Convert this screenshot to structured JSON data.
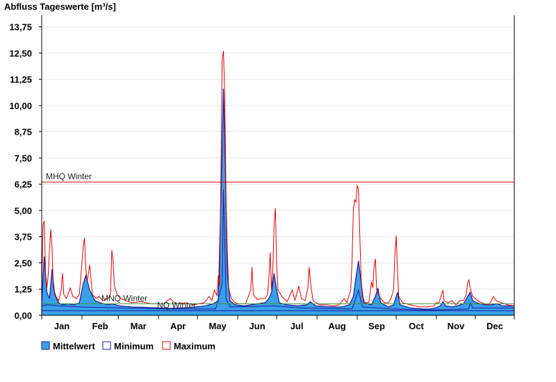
{
  "chart_data": {
    "type": "area",
    "title": "Abfluss Tageswerte [m³/s]",
    "xlabel": "",
    "ylabel": "",
    "ylim": [
      0,
      14.3
    ],
    "y_ticks": [
      "0,00",
      "1,25",
      "2,50",
      "3,75",
      "5,00",
      "6,25",
      "7,50",
      "8,75",
      "10,00",
      "11,25",
      "12,50",
      "13,75"
    ],
    "y_tick_values": [
      0,
      1.25,
      2.5,
      3.75,
      5,
      6.25,
      7.5,
      8.75,
      10,
      11.25,
      12.5,
      13.75
    ],
    "months": [
      "Jan",
      "Feb",
      "Mar",
      "Apr",
      "May",
      "Jun",
      "Jul",
      "Aug",
      "Sep",
      "Oct",
      "Nov",
      "Dec"
    ],
    "grid": true,
    "legend_position": "bottom-left",
    "colors": {
      "mittelwert_fill": "#3aa0e8",
      "mittelwert_line": "#1a1aa0",
      "minimum": "#1a1aa0",
      "maximum": "#dd0000",
      "mhq": "#cc0000",
      "mnq": "#3a9a3a",
      "nq": "#1a1aa0",
      "grid": "#e6e6e6"
    },
    "reference_lines": [
      {
        "label": "MHQ Winter",
        "value": 6.35
      },
      {
        "label": "MNQ Winter",
        "value": 0.55
      },
      {
        "label": "NQ Winter",
        "value": 0.22
      }
    ],
    "series": [
      {
        "name": "Mittelwert",
        "style": "area",
        "points": [
          [
            1,
            0.6
          ],
          [
            3,
            2.8
          ],
          [
            5,
            1.1
          ],
          [
            7,
            0.8
          ],
          [
            9,
            2.2
          ],
          [
            11,
            1.0
          ],
          [
            14,
            0.6
          ],
          [
            17,
            0.5
          ],
          [
            21,
            0.55
          ],
          [
            26,
            0.5
          ],
          [
            30,
            0.6
          ],
          [
            33,
            1.5
          ],
          [
            35,
            1.9
          ],
          [
            38,
            1.2
          ],
          [
            42,
            0.7
          ],
          [
            46,
            0.6
          ],
          [
            52,
            0.5
          ],
          [
            55,
            0.55
          ],
          [
            58,
            0.5
          ],
          [
            61,
            0.45
          ],
          [
            70,
            0.4
          ],
          [
            80,
            0.38
          ],
          [
            90,
            0.35
          ],
          [
            100,
            0.33
          ],
          [
            110,
            0.35
          ],
          [
            120,
            0.4
          ],
          [
            127,
            0.45
          ],
          [
            133,
            0.55
          ],
          [
            137,
            0.7
          ],
          [
            140,
            8.0
          ],
          [
            141,
            10.8
          ],
          [
            142,
            8.5
          ],
          [
            144,
            2.0
          ],
          [
            146,
            0.7
          ],
          [
            150,
            0.5
          ],
          [
            157,
            0.45
          ],
          [
            162,
            0.5
          ],
          [
            167,
            0.55
          ],
          [
            173,
            0.6
          ],
          [
            176,
            0.8
          ],
          [
            178,
            1.1
          ],
          [
            180,
            2.0
          ],
          [
            182,
            1.2
          ],
          [
            184,
            0.6
          ],
          [
            190,
            0.5
          ],
          [
            198,
            0.45
          ],
          [
            205,
            0.5
          ],
          [
            208,
            0.65
          ],
          [
            212,
            0.45
          ],
          [
            222,
            0.4
          ],
          [
            232,
            0.4
          ],
          [
            238,
            0.5
          ],
          [
            241,
            0.9
          ],
          [
            243,
            1.8
          ],
          [
            245,
            2.6
          ],
          [
            247,
            1.6
          ],
          [
            249,
            0.6
          ],
          [
            255,
            0.5
          ],
          [
            258,
            0.9
          ],
          [
            260,
            1.3
          ],
          [
            262,
            0.6
          ],
          [
            268,
            0.4
          ],
          [
            272,
            0.5
          ],
          [
            275,
            1.1
          ],
          [
            277,
            0.5
          ],
          [
            285,
            0.35
          ],
          [
            295,
            0.3
          ],
          [
            300,
            0.3
          ],
          [
            304,
            0.35
          ],
          [
            308,
            0.45
          ],
          [
            310,
            0.65
          ],
          [
            312,
            0.45
          ],
          [
            317,
            0.4
          ],
          [
            321,
            0.45
          ],
          [
            326,
            0.55
          ],
          [
            329,
            0.9
          ],
          [
            331,
            1.1
          ],
          [
            333,
            0.7
          ],
          [
            336,
            0.6
          ],
          [
            342,
            0.5
          ],
          [
            347,
            0.5
          ],
          [
            352,
            0.55
          ],
          [
            356,
            0.45
          ],
          [
            365,
            0.45
          ]
        ]
      },
      {
        "name": "Minimum",
        "style": "line",
        "points": [
          [
            1,
            0.45
          ],
          [
            5,
            0.5
          ],
          [
            14,
            0.45
          ],
          [
            30,
            0.4
          ],
          [
            60,
            0.35
          ],
          [
            100,
            0.3
          ],
          [
            135,
            0.3
          ],
          [
            140,
            1.5
          ],
          [
            141,
            6.0
          ],
          [
            143,
            0.8
          ],
          [
            146,
            0.4
          ],
          [
            180,
            0.45
          ],
          [
            200,
            0.35
          ],
          [
            240,
            0.3
          ],
          [
            245,
            1.2
          ],
          [
            248,
            0.4
          ],
          [
            270,
            0.3
          ],
          [
            300,
            0.25
          ],
          [
            330,
            0.3
          ],
          [
            331,
            0.6
          ],
          [
            333,
            0.35
          ],
          [
            365,
            0.35
          ]
        ]
      },
      {
        "name": "Maximum",
        "style": "line",
        "points": [
          [
            1,
            1.0
          ],
          [
            2,
            4.3
          ],
          [
            3,
            4.5
          ],
          [
            4,
            2.0
          ],
          [
            5,
            1.3
          ],
          [
            6,
            1.9
          ],
          [
            7,
            3.1
          ],
          [
            8,
            4.1
          ],
          [
            9,
            3.2
          ],
          [
            10,
            1.3
          ],
          [
            12,
            0.9
          ],
          [
            14,
            0.7
          ],
          [
            16,
            1.2
          ],
          [
            17,
            2.0
          ],
          [
            18,
            1.0
          ],
          [
            20,
            0.8
          ],
          [
            23,
            1.3
          ],
          [
            25,
            0.9
          ],
          [
            28,
            0.8
          ],
          [
            30,
            1.0
          ],
          [
            32,
            2.5
          ],
          [
            33,
            3.3
          ],
          [
            34,
            3.7
          ],
          [
            35,
            2.2
          ],
          [
            36,
            1.6
          ],
          [
            38,
            2.4
          ],
          [
            40,
            1.0
          ],
          [
            43,
            0.8
          ],
          [
            45,
            0.9
          ],
          [
            48,
            0.7
          ],
          [
            52,
            0.8
          ],
          [
            54,
            1.0
          ],
          [
            55,
            3.1
          ],
          [
            56,
            2.6
          ],
          [
            57,
            1.4
          ],
          [
            59,
            1.0
          ],
          [
            62,
            0.8
          ],
          [
            70,
            0.6
          ],
          [
            78,
            0.65
          ],
          [
            85,
            0.55
          ],
          [
            95,
            0.55
          ],
          [
            100,
            0.8
          ],
          [
            104,
            0.55
          ],
          [
            112,
            0.6
          ],
          [
            118,
            0.5
          ],
          [
            122,
            0.55
          ],
          [
            126,
            0.6
          ],
          [
            128,
            0.75
          ],
          [
            130,
            0.9
          ],
          [
            132,
            0.7
          ],
          [
            134,
            1.2
          ],
          [
            136,
            0.95
          ],
          [
            137,
            1.9
          ],
          [
            138,
            1.4
          ],
          [
            139,
            6.5
          ],
          [
            140,
            12.2
          ],
          [
            141,
            12.6
          ],
          [
            142,
            10.5
          ],
          [
            143,
            5.5
          ],
          [
            144,
            3.0
          ],
          [
            145,
            1.3
          ],
          [
            147,
            0.8
          ],
          [
            150,
            0.6
          ],
          [
            153,
            0.55
          ],
          [
            158,
            0.55
          ],
          [
            162,
            1.2
          ],
          [
            163,
            2.3
          ],
          [
            164,
            1.0
          ],
          [
            167,
            0.75
          ],
          [
            170,
            0.8
          ],
          [
            173,
            0.8
          ],
          [
            175,
            1.0
          ],
          [
            176,
            1.8
          ],
          [
            177,
            3.0
          ],
          [
            178,
            1.2
          ],
          [
            179,
            2.1
          ],
          [
            180,
            4.4
          ],
          [
            181,
            5.1
          ],
          [
            182,
            2.3
          ],
          [
            183,
            1.2
          ],
          [
            186,
            0.9
          ],
          [
            190,
            0.65
          ],
          [
            194,
            1.2
          ],
          [
            196,
            0.7
          ],
          [
            199,
            1.4
          ],
          [
            201,
            0.8
          ],
          [
            204,
            0.7
          ],
          [
            206,
            1.3
          ],
          [
            207,
            2.3
          ],
          [
            208,
            1.6
          ],
          [
            210,
            0.7
          ],
          [
            215,
            0.5
          ],
          [
            220,
            0.5
          ],
          [
            225,
            0.45
          ],
          [
            230,
            0.5
          ],
          [
            234,
            0.8
          ],
          [
            236,
            0.6
          ],
          [
            239,
            1.2
          ],
          [
            240,
            2.5
          ],
          [
            241,
            5.0
          ],
          [
            242,
            5.5
          ],
          [
            243,
            5.4
          ],
          [
            244,
            6.2
          ],
          [
            245,
            6.0
          ],
          [
            246,
            3.8
          ],
          [
            247,
            1.8
          ],
          [
            248,
            0.9
          ],
          [
            250,
            0.6
          ],
          [
            253,
            0.6
          ],
          [
            255,
            1.6
          ],
          [
            256,
            1.3
          ],
          [
            257,
            2.3
          ],
          [
            258,
            2.7
          ],
          [
            259,
            1.2
          ],
          [
            262,
            0.8
          ],
          [
            265,
            0.6
          ],
          [
            268,
            0.6
          ],
          [
            270,
            0.8
          ],
          [
            272,
            1.2
          ],
          [
            273,
            2.8
          ],
          [
            274,
            3.8
          ],
          [
            275,
            2.2
          ],
          [
            276,
            0.9
          ],
          [
            279,
            0.6
          ],
          [
            285,
            0.5
          ],
          [
            292,
            0.4
          ],
          [
            298,
            0.4
          ],
          [
            303,
            0.45
          ],
          [
            305,
            0.6
          ],
          [
            307,
            0.6
          ],
          [
            309,
            1.0
          ],
          [
            310,
            1.2
          ],
          [
            311,
            0.7
          ],
          [
            314,
            0.6
          ],
          [
            317,
            0.7
          ],
          [
            320,
            0.5
          ],
          [
            323,
            0.7
          ],
          [
            326,
            0.7
          ],
          [
            328,
            1.0
          ],
          [
            329,
            1.5
          ],
          [
            330,
            1.7
          ],
          [
            331,
            1.3
          ],
          [
            333,
            0.9
          ],
          [
            335,
            0.8
          ],
          [
            338,
            0.65
          ],
          [
            342,
            0.55
          ],
          [
            345,
            0.5
          ],
          [
            347,
            0.65
          ],
          [
            349,
            0.9
          ],
          [
            351,
            0.7
          ],
          [
            355,
            0.6
          ],
          [
            360,
            0.5
          ],
          [
            365,
            0.45
          ]
        ]
      }
    ]
  }
}
